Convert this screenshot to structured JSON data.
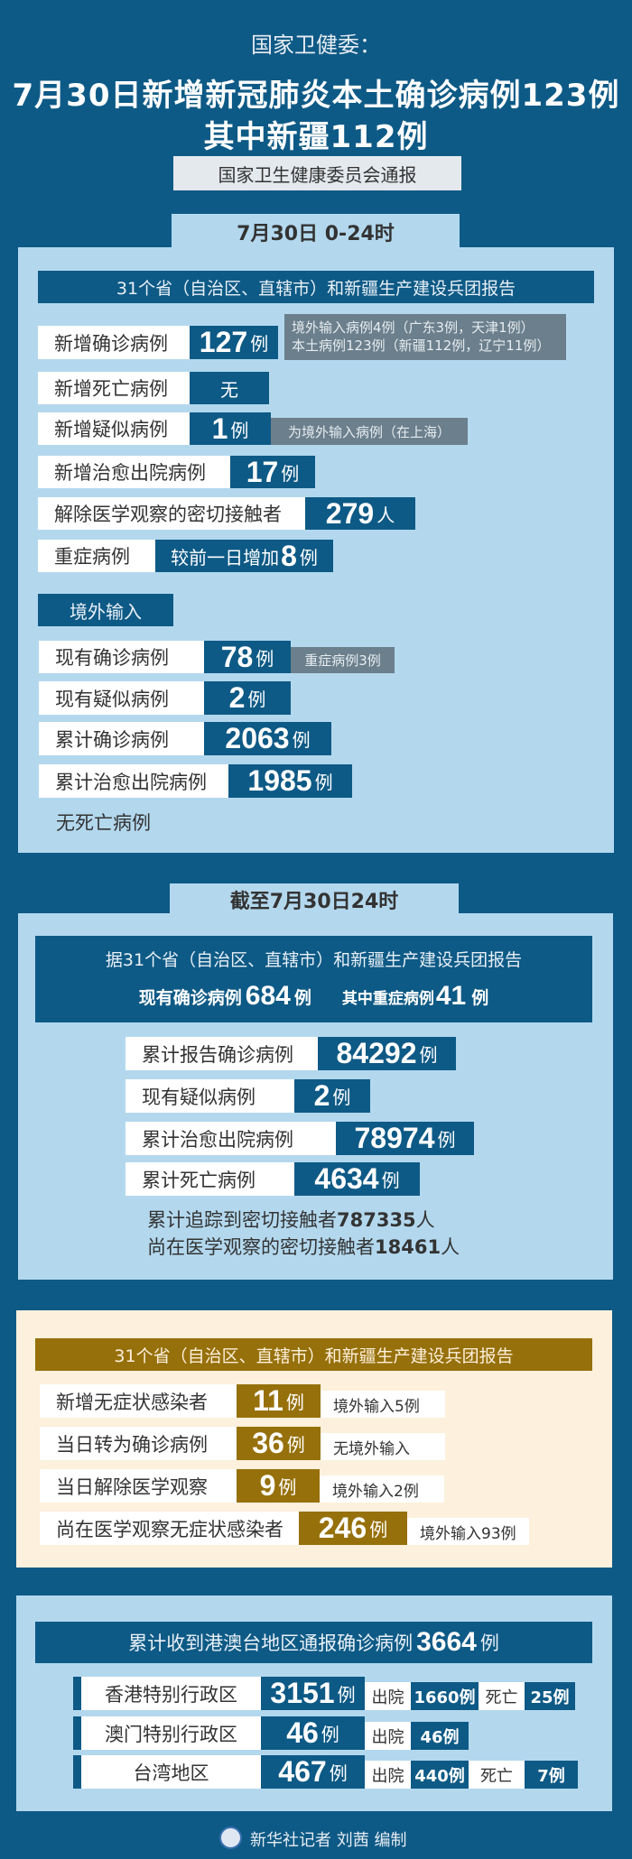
{
  "header": {
    "source": "国家卫健委：",
    "title_line1": "7月30日新增新冠肺炎本土确诊病例123例",
    "title_line2": "其中新疆112例",
    "notice": "国家卫生健康委员会通报"
  },
  "daily": {
    "tab": "7月30日 0-24时",
    "bar": "31个省（自治区、直辖市）和新疆生产建设兵团报告",
    "rows": [
      {
        "label": "新增确诊病例",
        "value": "127",
        "unit": "例",
        "note1": "境外输入病例4例（广东3例，天津1例）",
        "note2": "本土病例123例（新疆112例，辽宁11例）"
      },
      {
        "label": "新增死亡病例",
        "value": "无"
      },
      {
        "label": "新增疑似病例",
        "value": "1",
        "unit": "例",
        "note": "为境外输入病例（在上海）"
      },
      {
        "label": "新增治愈出院病例",
        "value": "17",
        "unit": "例"
      },
      {
        "label": "解除医学观察的密切接触者",
        "value": "279",
        "unit": "人"
      },
      {
        "label": "重症病例",
        "prefix": "较前一日增加",
        "value": "8",
        "unit": "例"
      }
    ],
    "imported": {
      "heading": "境外输入",
      "rows": [
        {
          "label": "现有确诊病例",
          "value": "78",
          "unit": "例",
          "note": "重症病例3例"
        },
        {
          "label": "现有疑似病例",
          "value": "2",
          "unit": "例"
        },
        {
          "label": "累计确诊病例",
          "value": "2063",
          "unit": "例"
        },
        {
          "label": "累计治愈出院病例",
          "value": "1985",
          "unit": "例"
        }
      ],
      "footer": "无死亡病例"
    }
  },
  "cumulative": {
    "tab": "截至7月30日24时",
    "box_line1": "据31个省（自治区、直辖市）和新疆生产建设兵团报告",
    "current_label": "现有确诊病例",
    "current_value": "684",
    "current_unit": "例",
    "severe_label": "其中重症病例",
    "severe_value": "41",
    "severe_unit": "例",
    "rows": [
      {
        "label": "累计报告确诊病例",
        "value": "84292",
        "unit": "例"
      },
      {
        "label": "现有疑似病例",
        "value": "2",
        "unit": "例"
      },
      {
        "label": "累计治愈出院病例",
        "value": "78974",
        "unit": "例"
      },
      {
        "label": "累计死亡病例",
        "value": "4634",
        "unit": "例"
      }
    ],
    "traced_label": "累计追踪到密切接触者",
    "traced_value": "787335",
    "traced_unit": "人",
    "observing_label": "尚在医学观察的密切接触者",
    "observing_value": "18461",
    "observing_unit": "人"
  },
  "asymptomatic": {
    "bar": "31个省（自治区、直辖市）和新疆生产建设兵团报告",
    "rows": [
      {
        "label": "新增无症状感染者",
        "value": "11",
        "unit": "例",
        "note": "境外输入5例"
      },
      {
        "label": "当日转为确诊病例",
        "value": "36",
        "unit": "例",
        "note": "无境外输入"
      },
      {
        "label": "当日解除医学观察",
        "value": "9",
        "unit": "例",
        "note": "境外输入2例"
      },
      {
        "label": "尚在医学观察无症状感染者",
        "value": "246",
        "unit": "例",
        "note": "境外输入93例"
      }
    ]
  },
  "hmt": {
    "bar_label": "累计收到港澳台地区通报确诊病例",
    "bar_value": "3664",
    "bar_unit": "例",
    "discharged_label": "出院",
    "death_label": "死亡",
    "rows": [
      {
        "label": "香港特别行政区",
        "value": "3151",
        "unit": "例",
        "discharged": "1660例",
        "deaths": "25例"
      },
      {
        "label": "澳门特别行政区",
        "value": "46",
        "unit": "例",
        "discharged": "46例"
      },
      {
        "label": "台湾地区",
        "value": "467",
        "unit": "例",
        "discharged": "440例",
        "deaths": "7例"
      }
    ]
  },
  "credit": "新华社记者 刘茜 编制",
  "colors": {
    "background": "#0e5a86",
    "panel": "#b3d8ee",
    "asymptomatic_panel": "#fdf0dc",
    "gold": "#96700a",
    "note_gray": "#6b7f8c"
  }
}
